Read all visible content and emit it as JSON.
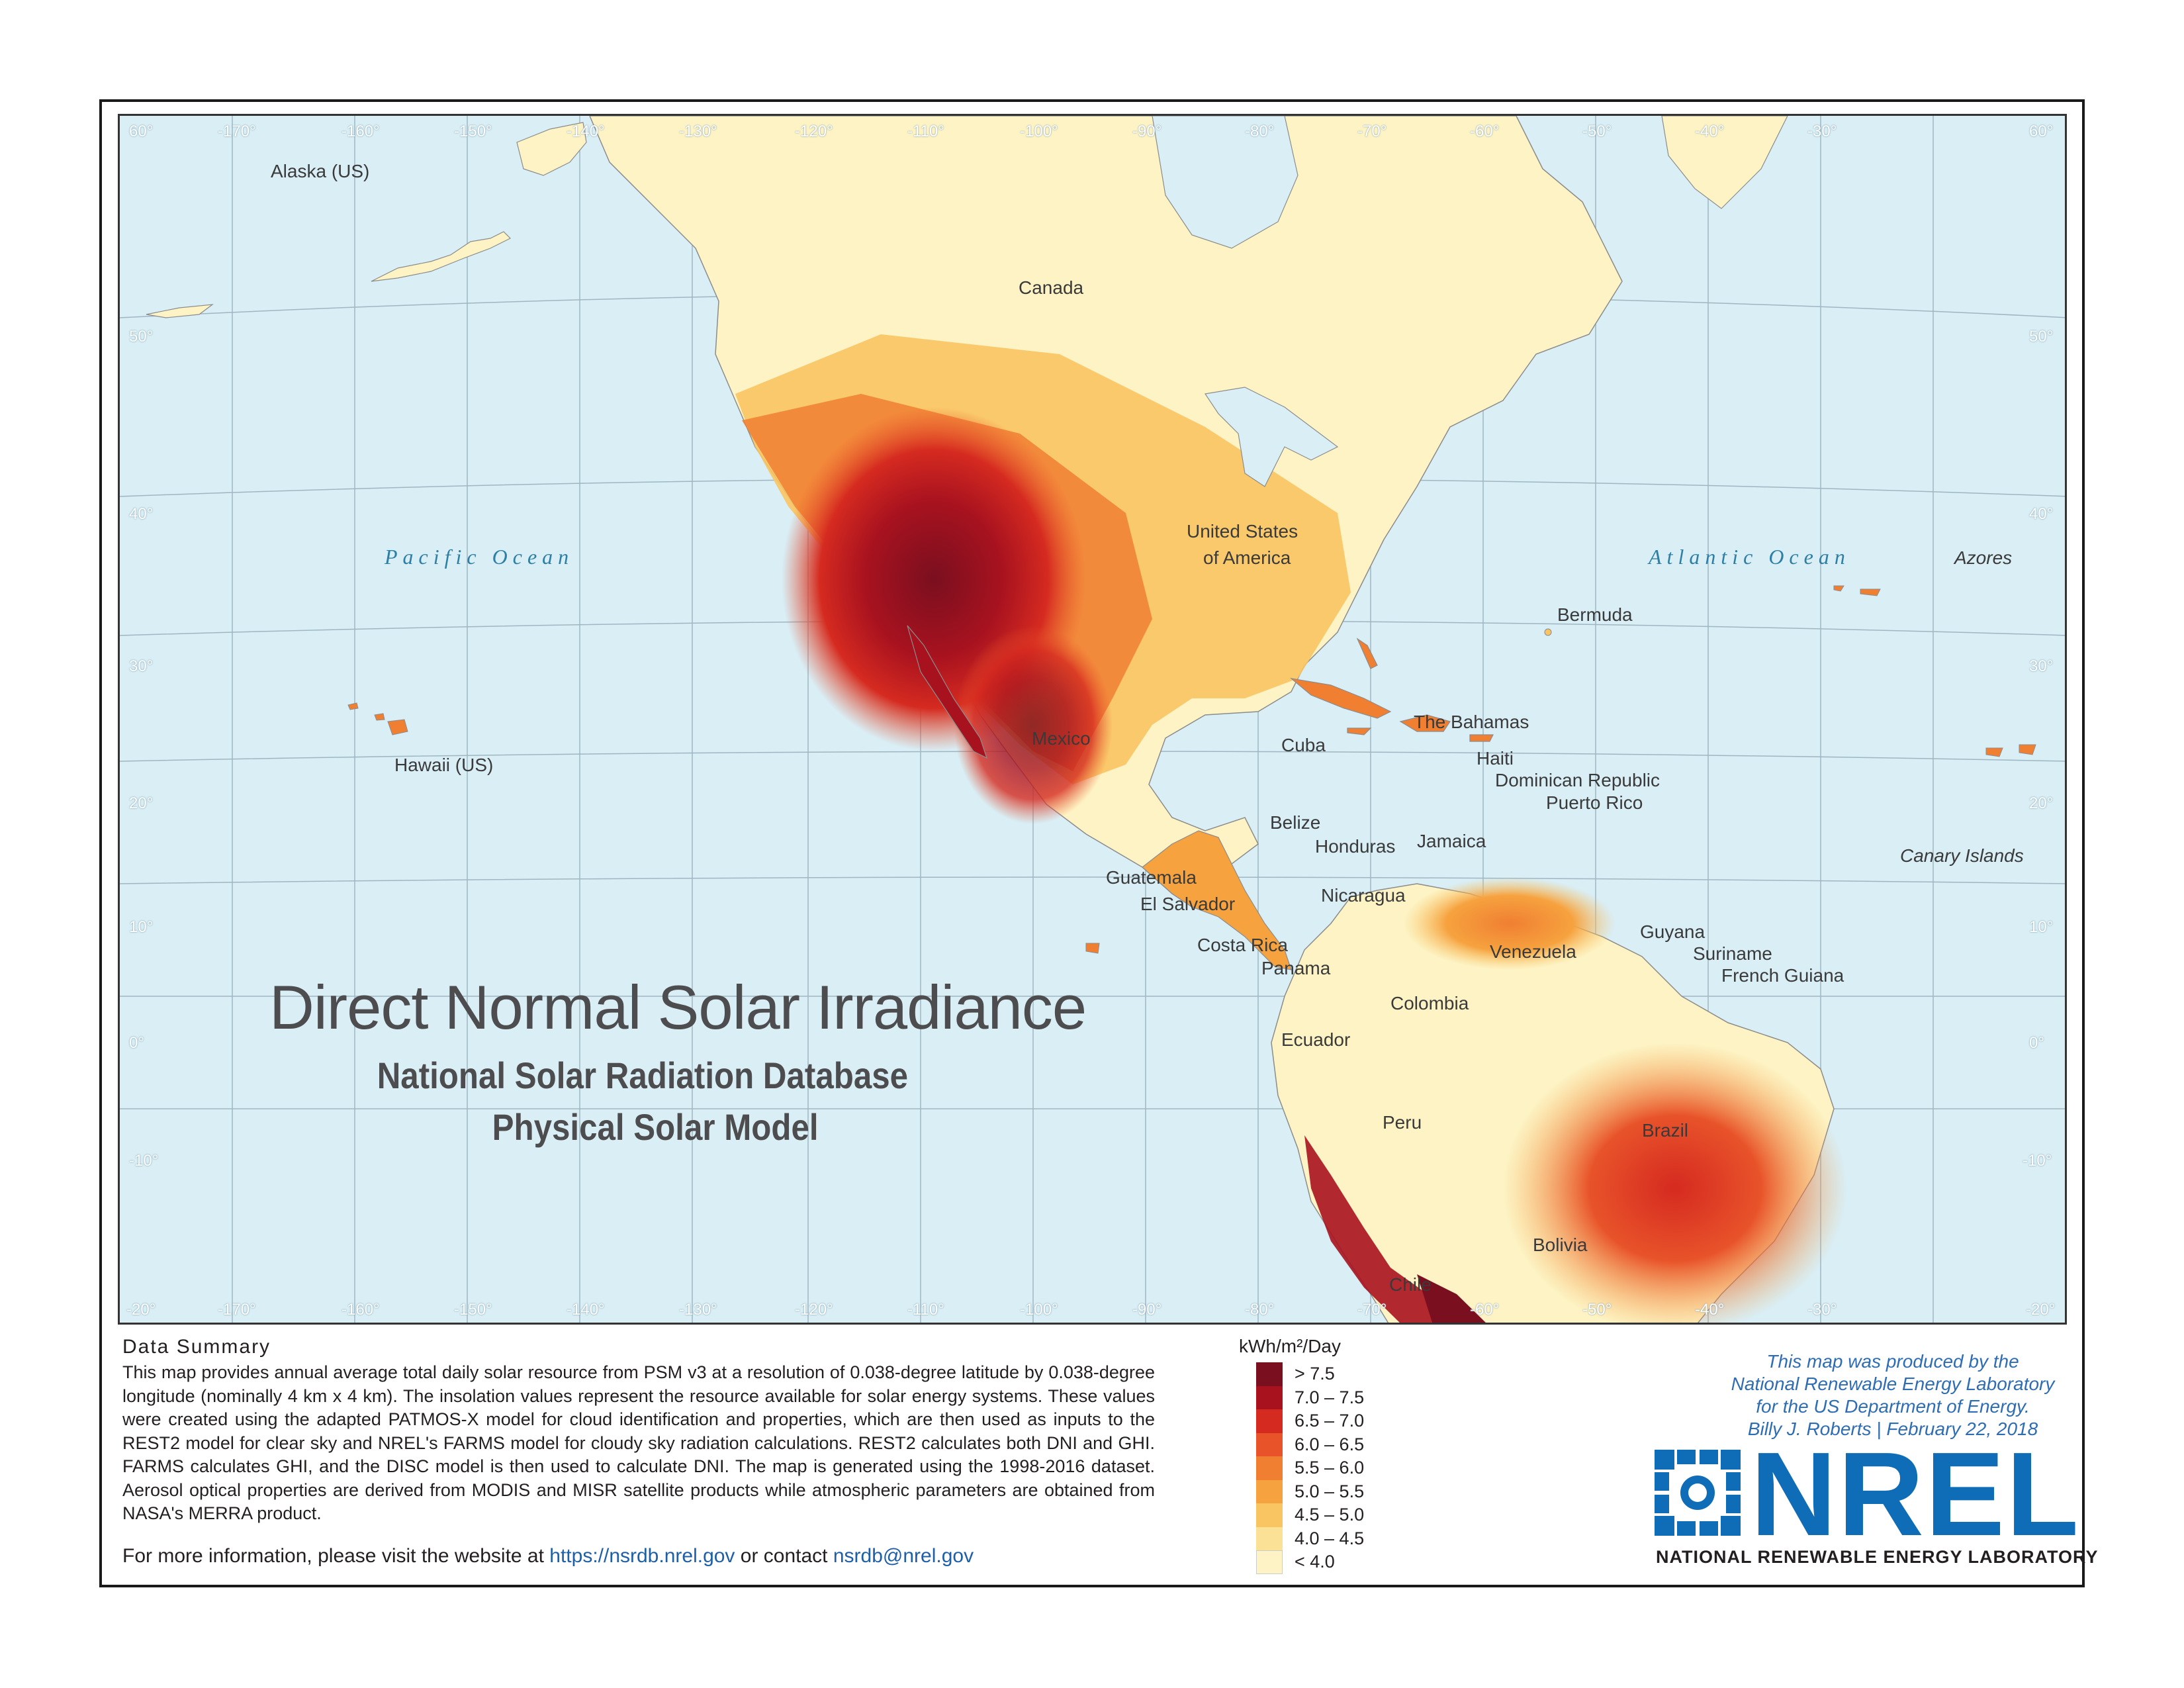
{
  "map": {
    "grid_longitudes_top": [
      "60°",
      "-170°",
      "-160°",
      "-150°",
      "-140°",
      "-130°",
      "-120°",
      "-110°",
      "-100°",
      "-90°",
      "-80°",
      "-70°",
      "-60°",
      "-50°",
      "-40°",
      "-30°",
      "60°"
    ],
    "grid_longitudes_bottom": [
      "-20°",
      "-170°",
      "-160°",
      "-150°",
      "-140°",
      "-130°",
      "-120°",
      "-110°",
      "-100°",
      "-90°",
      "-80°",
      "-70°",
      "-60°",
      "-50°",
      "-40°",
      "-30°",
      "-20°"
    ],
    "grid_latitudes": [
      "50°",
      "40°",
      "30°",
      "20°",
      "10°",
      "0°",
      "-10°"
    ],
    "oceans": {
      "pacific": "Pacific Ocean",
      "atlantic": "Atlantic Ocean"
    },
    "places": {
      "alaska": "Alaska (US)",
      "canada": "Canada",
      "usa_line1": "United States",
      "usa_line2": "of America",
      "bermuda": "Bermuda",
      "azores": "Azores",
      "bahamas": "The Bahamas",
      "cuba": "Cuba",
      "haiti": "Haiti",
      "dominican": "Dominican Republic",
      "puerto_rico": "Puerto Rico",
      "hawaii": "Hawaii (US)",
      "mexico": "Mexico",
      "belize": "Belize",
      "honduras": "Honduras",
      "jamaica": "Jamaica",
      "guatemala": "Guatemala",
      "el_salvador": "El Salvador",
      "nicaragua": "Nicaragua",
      "costa_rica": "Costa Rica",
      "panama": "Panama",
      "canary": "Canary Islands",
      "venezuela": "Venezuela",
      "guyana": "Guyana",
      "suriname": "Suriname",
      "french_guiana": "French Guiana",
      "colombia": "Colombia",
      "ecuador": "Ecuador",
      "peru": "Peru",
      "brazil": "Brazil",
      "bolivia": "Bolivia",
      "chile": "Chile"
    }
  },
  "title": "Direct Normal Solar Irradiance",
  "subtitle1": "National Solar Radiation Database",
  "subtitle2": "Physical Solar Model",
  "data_summary": {
    "heading": "Data Summary",
    "body": "This map provides annual average total daily solar resource from PSM v3 at a resolution of 0.038-degree latitude by 0.038-degree longitude (nominally 4 km x 4 km). The insolation values represent the resource available for solar energy systems. These values were created using the adapted PATMOS-X model for cloud identification and properties, which are then used as inputs to the REST2 model for clear sky and NREL's FARMS model for cloudy sky radiation calculations. REST2 calculates both DNI and GHI. FARMS calculates GHI, and the DISC model is then used to calculate DNI. The map is generated using the 1998-2016 dataset. Aerosol optical properties are derived from MODIS and MISR satellite products while atmospheric parameters are obtained from NASA's MERRA product.",
    "more_prefix": "For more information, please visit the website at ",
    "website": "https://nsrdb.nrel.gov",
    "more_mid": " or contact ",
    "email": "nsrdb@nrel.gov"
  },
  "legend": {
    "title": "kWh/m²/Day",
    "items": [
      {
        "label": "> 7.5",
        "color": "#7a0f1f"
      },
      {
        "label": "7.0 – 7.5",
        "color": "#a8121f"
      },
      {
        "label": "6.5 – 7.0",
        "color": "#d52a20"
      },
      {
        "label": "6.0 – 6.5",
        "color": "#e8532a"
      },
      {
        "label": "5.5 – 6.0",
        "color": "#f07f32"
      },
      {
        "label": "5.0 – 5.5",
        "color": "#f6a23f"
      },
      {
        "label": "4.5 – 5.0",
        "color": "#f9c462"
      },
      {
        "label": "4.0 – 4.5",
        "color": "#fbe196"
      },
      {
        "label": "< 4.0",
        "color": "#fdf3c4"
      }
    ]
  },
  "credit": {
    "line1": "This map was produced by the",
    "line2": "National Renewable Energy Laboratory",
    "line3": "for the US Department of Energy.",
    "line4": "Billy J. Roberts | February 22, 2018"
  },
  "logo": {
    "word": "NREL",
    "subtitle": "NATIONAL RENEWABLE ENERGY LABORATORY"
  },
  "colors": {
    "ocean": "#d9eef5",
    "land_low": "#fdf3c4",
    "brand": "#0f6cb6",
    "ocean_label": "#2e7fa6"
  }
}
